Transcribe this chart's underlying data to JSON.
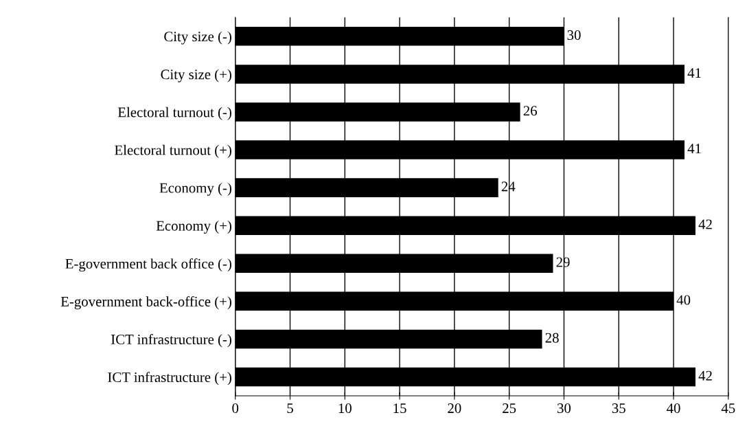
{
  "chart_data": {
    "type": "bar",
    "orientation": "horizontal",
    "categories": [
      "City size (-)",
      "City size (+)",
      "Electoral turnout (-)",
      "Electoral turnout (+)",
      "Economy (-)",
      "Economy (+)",
      "E-government back office (-)",
      "E-government back-office (+)",
      "ICT infrastructure (-)",
      "ICT infrastructure (+)"
    ],
    "values": [
      30,
      41,
      26,
      41,
      24,
      42,
      29,
      40,
      28,
      42
    ],
    "color": "#000000",
    "xlim": [
      0,
      45
    ],
    "xticks": [
      0,
      5,
      10,
      15,
      20,
      25,
      30,
      35,
      40,
      45
    ],
    "grid": "x",
    "data_labels": true
  }
}
